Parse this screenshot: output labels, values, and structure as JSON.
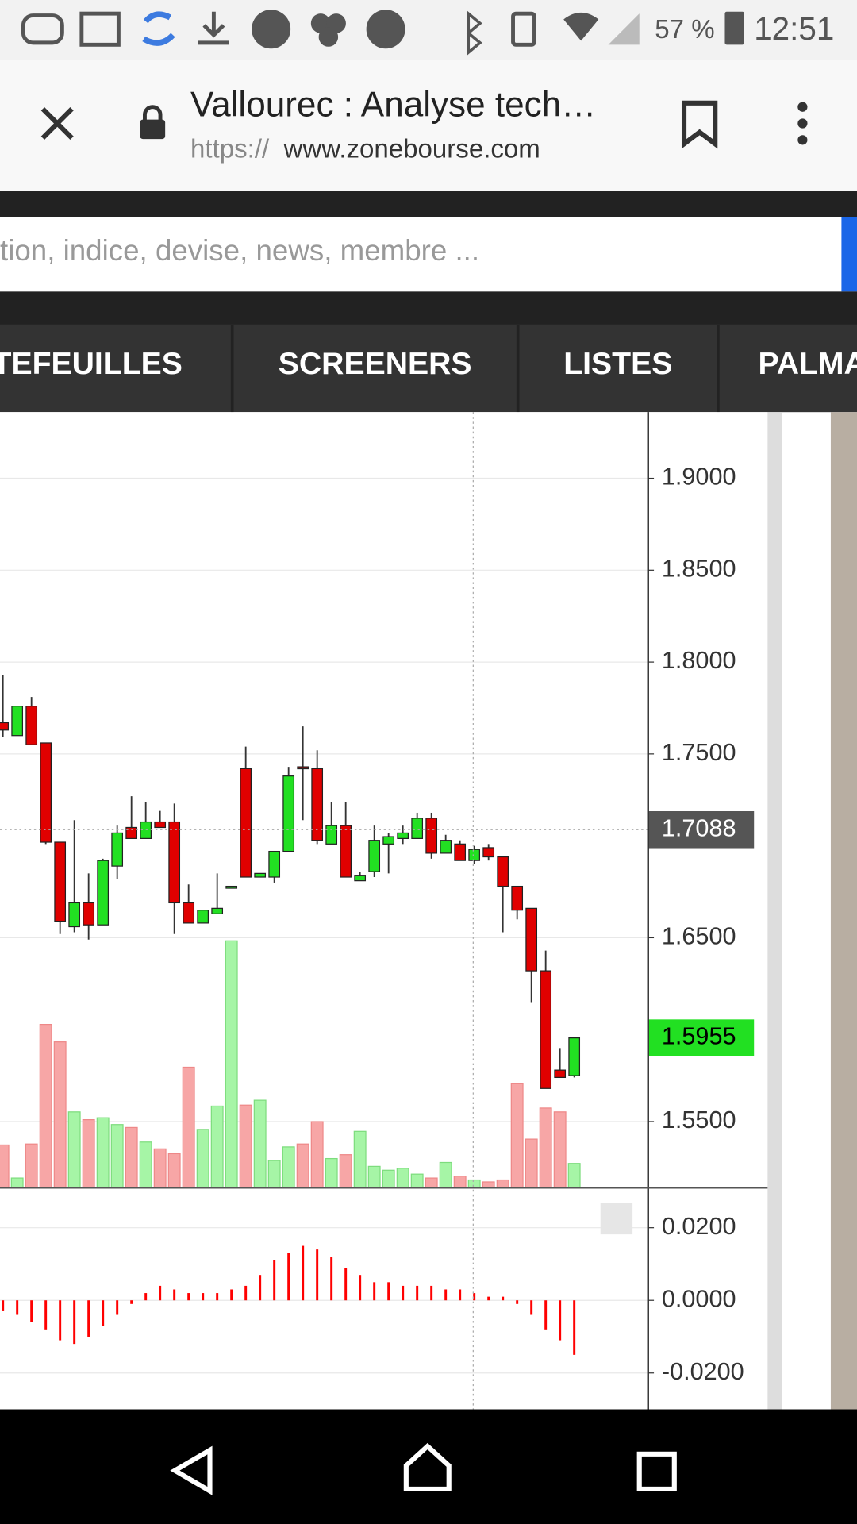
{
  "status_bar": {
    "battery": "57 %",
    "time": "12:51"
  },
  "browser": {
    "title": "Vallourec : Analyse tech…",
    "url_scheme": "https://",
    "url_host": "www.zonebourse.com"
  },
  "search": {
    "placeholder": "tion, indice, devise, news, membre ..."
  },
  "nav": {
    "tabs": [
      "TEFEUILLES",
      "SCREENERS",
      "LISTES",
      "PALMA"
    ]
  },
  "chart_data": [
    {
      "type": "candlestick",
      "open": [
        1.767,
        1.76,
        1.776,
        1.756,
        1.702,
        1.656,
        1.669,
        1.657,
        1.689,
        1.71,
        1.704,
        1.713,
        1.713,
        1.669,
        1.658,
        1.663,
        1.677,
        1.742,
        1.683,
        1.683,
        1.697,
        1.743,
        1.742,
        1.701,
        1.711,
        1.681,
        1.686,
        1.701,
        1.704,
        1.704,
        1.715,
        1.696,
        1.701,
        1.692,
        1.699,
        1.694,
        1.678,
        1.666,
        1.632,
        1.578,
        1.575
      ],
      "high": [
        1.793,
        1.776,
        1.781,
        1.756,
        1.702,
        1.714,
        1.685,
        1.693,
        1.711,
        1.727,
        1.724,
        1.719,
        1.723,
        1.679,
        1.665,
        1.685,
        1.678,
        1.754,
        1.685,
        1.697,
        1.743,
        1.765,
        1.752,
        1.724,
        1.724,
        1.686,
        1.711,
        1.707,
        1.711,
        1.718,
        1.718,
        1.706,
        1.703,
        1.7,
        1.701,
        1.694,
        1.678,
        1.666,
        1.643,
        1.59,
        1.5955
      ],
      "low": [
        1.759,
        1.76,
        1.755,
        1.701,
        1.652,
        1.653,
        1.649,
        1.657,
        1.682,
        1.704,
        1.704,
        1.71,
        1.652,
        1.658,
        1.658,
        1.663,
        1.677,
        1.683,
        1.683,
        1.68,
        1.697,
        1.714,
        1.701,
        1.701,
        1.683,
        1.681,
        1.683,
        1.685,
        1.701,
        1.704,
        1.693,
        1.696,
        1.692,
        1.69,
        1.692,
        1.653,
        1.66,
        1.615,
        1.568,
        1.574,
        1.574
      ],
      "close": [
        1.763,
        1.776,
        1.755,
        1.702,
        1.659,
        1.669,
        1.657,
        1.692,
        1.707,
        1.704,
        1.713,
        1.71,
        1.669,
        1.658,
        1.665,
        1.666,
        1.678,
        1.683,
        1.685,
        1.697,
        1.738,
        1.742,
        1.703,
        1.711,
        1.683,
        1.684,
        1.703,
        1.705,
        1.707,
        1.715,
        1.696,
        1.703,
        1.692,
        1.698,
        1.694,
        1.678,
        1.665,
        1.632,
        1.568,
        1.574,
        1.5955
      ],
      "volume": [
        44,
        10,
        45,
        168,
        150,
        78,
        70,
        72,
        65,
        62,
        47,
        40,
        35,
        124,
        60,
        84,
        254,
        85,
        90,
        28,
        42,
        45,
        68,
        30,
        34,
        58,
        22,
        18,
        20,
        14,
        10,
        26,
        12,
        8,
        6,
        8,
        107,
        50,
        82,
        78,
        25
      ],
      "up_color": "#22e022",
      "down_color": "#e00000",
      "up_volume_color": "#a6f5a6",
      "down_volume_color": "#f7a6a6",
      "ylim": [
        1.514,
        1.936
      ],
      "yticks": [
        {
          "value": 1.9,
          "label": "1.9000"
        },
        {
          "value": 1.85,
          "label": "1.8500"
        },
        {
          "value": 1.8,
          "label": "1.8000"
        },
        {
          "value": 1.75,
          "label": "1.7500"
        },
        {
          "value": 1.65,
          "label": "1.6500"
        },
        {
          "value": 1.55,
          "label": "1.5500"
        }
      ],
      "ref_price": 1.7088,
      "last_price": 1.5955,
      "grid": true
    },
    {
      "type": "bar",
      "values": [
        -0.003,
        -0.004,
        -0.006,
        -0.008,
        -0.011,
        -0.012,
        -0.01,
        -0.007,
        -0.004,
        -0.001,
        0.002,
        0.004,
        0.003,
        0.002,
        0.002,
        0.002,
        0.003,
        0.004,
        0.007,
        0.011,
        0.013,
        0.015,
        0.014,
        0.012,
        0.009,
        0.007,
        0.005,
        0.005,
        0.004,
        0.004,
        0.004,
        0.003,
        0.003,
        0.002,
        0.001,
        0.001,
        -0.001,
        -0.004,
        -0.008,
        -0.011,
        -0.015
      ],
      "color": "#ff0000",
      "ylim": [
        -0.03,
        0.0302
      ],
      "yticks": [
        {
          "value": 0.02,
          "label": "0.0200"
        },
        {
          "value": 0,
          "label": "0.0000"
        },
        {
          "value": -0.02,
          "label": "-0.0200"
        }
      ],
      "grid": true
    }
  ]
}
